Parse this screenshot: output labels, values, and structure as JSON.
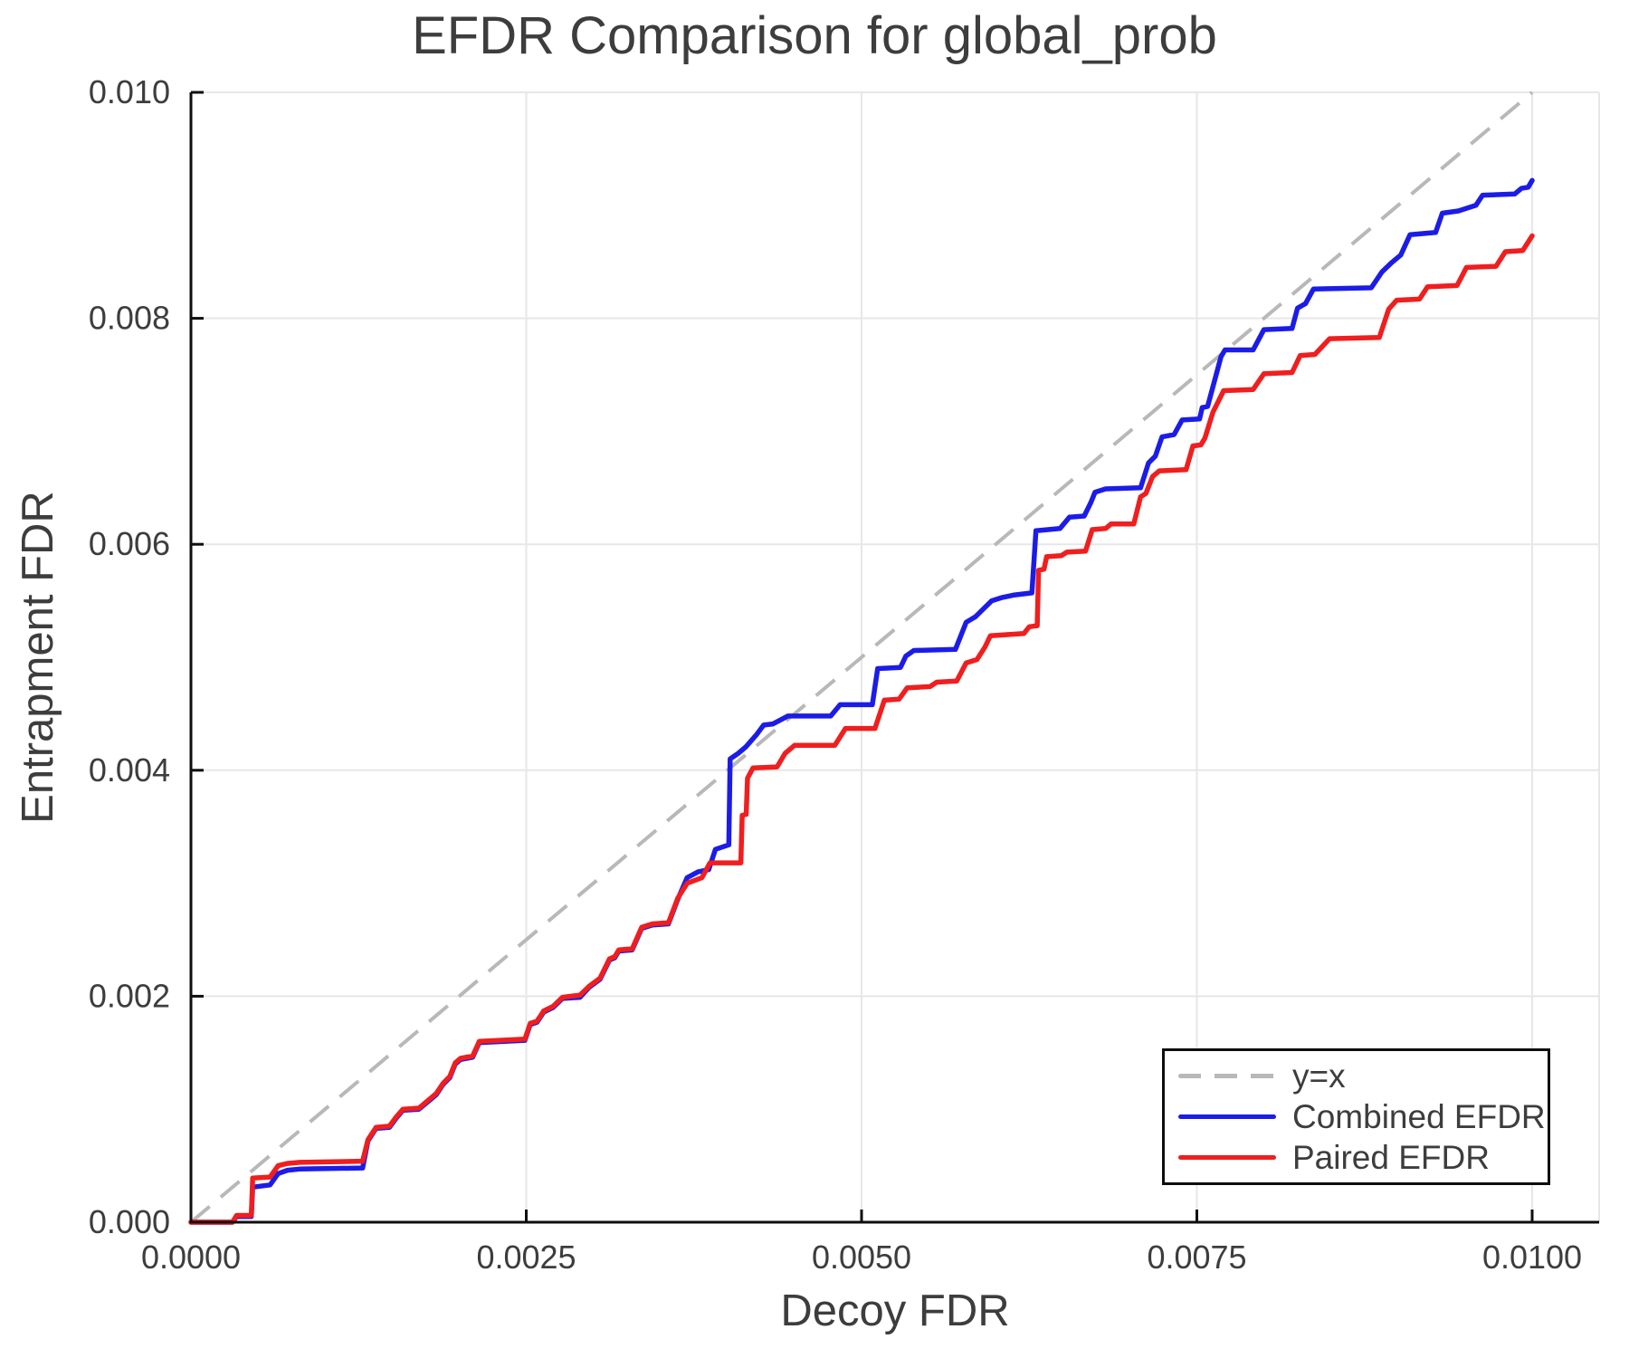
{
  "chart_data": {
    "type": "line",
    "title": "EFDR Comparison for global_prob",
    "xlabel": "Decoy FDR",
    "ylabel": "Entrapment FDR",
    "xlim": [
      0.0,
      0.0105
    ],
    "ylim": [
      0.0,
      0.01
    ],
    "grid": true,
    "legend_position": "bottom-right",
    "style": {
      "grid_color": "#e7e7e7",
      "spine_color": "#0e0e0e",
      "text_color": "#3d3d3d",
      "background": "#ffffff"
    },
    "x_ticks": [
      {
        "value": 0.0,
        "label": "0.0000"
      },
      {
        "value": 0.0025,
        "label": "0.0025"
      },
      {
        "value": 0.005,
        "label": "0.0050"
      },
      {
        "value": 0.0075,
        "label": "0.0075"
      },
      {
        "value": 0.01,
        "label": "0.0100"
      }
    ],
    "y_ticks": [
      {
        "value": 0.0,
        "label": "0.000"
      },
      {
        "value": 0.002,
        "label": "0.002"
      },
      {
        "value": 0.004,
        "label": "0.004"
      },
      {
        "value": 0.006,
        "label": "0.006"
      },
      {
        "value": 0.008,
        "label": "0.008"
      },
      {
        "value": 0.01,
        "label": "0.010"
      }
    ],
    "identity_line": {
      "label": "y=x",
      "color": "#b8b8b8",
      "dashed": true,
      "from": [
        0.0,
        0.0
      ],
      "to": [
        0.01,
        0.01
      ]
    },
    "series": [
      {
        "name": "Combined EFDR",
        "color": "#1c1ce8",
        "points": [
          [
            0,
            0
          ],
          [
            0.00031,
            0
          ],
          [
            0.00034,
            5e-05
          ],
          [
            0.00045,
            5e-05
          ],
          [
            0.00046,
            0.00031
          ],
          [
            0.00059,
            0.00033
          ],
          [
            0.00065,
            0.00043
          ],
          [
            0.00072,
            0.00046
          ],
          [
            0.00081,
            0.00047
          ],
          [
            0.00128,
            0.00048
          ],
          [
            0.00132,
            0.00072
          ],
          [
            0.00138,
            0.00083
          ],
          [
            0.00148,
            0.00084
          ],
          [
            0.00153,
            0.00092
          ],
          [
            0.00158,
            0.00099
          ],
          [
            0.0017,
            0.001
          ],
          [
            0.00177,
            0.00107
          ],
          [
            0.00183,
            0.00113
          ],
          [
            0.00188,
            0.00122
          ],
          [
            0.00193,
            0.00128
          ],
          [
            0.00197,
            0.0014
          ],
          [
            0.00201,
            0.00144
          ],
          [
            0.0021,
            0.00146
          ],
          [
            0.00215,
            0.00159
          ],
          [
            0.00249,
            0.00161
          ],
          [
            0.00253,
            0.00175
          ],
          [
            0.00258,
            0.00177
          ],
          [
            0.00263,
            0.00186
          ],
          [
            0.0027,
            0.0019
          ],
          [
            0.00277,
            0.00198
          ],
          [
            0.0029,
            0.00199
          ],
          [
            0.00297,
            0.00208
          ],
          [
            0.00305,
            0.00215
          ],
          [
            0.00312,
            0.00232
          ],
          [
            0.00316,
            0.00234
          ],
          [
            0.00319,
            0.0024
          ],
          [
            0.00329,
            0.00241
          ],
          [
            0.00336,
            0.0026
          ],
          [
            0.00344,
            0.00263
          ],
          [
            0.00356,
            0.00264
          ],
          [
            0.00363,
            0.00286
          ],
          [
            0.0037,
            0.00305
          ],
          [
            0.00378,
            0.0031
          ],
          [
            0.00386,
            0.00312
          ],
          [
            0.00391,
            0.0033
          ],
          [
            0.00401,
            0.00334
          ],
          [
            0.00402,
            0.0041
          ],
          [
            0.00408,
            0.00415
          ],
          [
            0.00414,
            0.00421
          ],
          [
            0.00422,
            0.00432
          ],
          [
            0.00427,
            0.0044
          ],
          [
            0.00434,
            0.00441
          ],
          [
            0.00445,
            0.00448
          ],
          [
            0.00477,
            0.00448
          ],
          [
            0.00484,
            0.00458
          ],
          [
            0.00508,
            0.00458
          ],
          [
            0.00512,
            0.0049
          ],
          [
            0.00529,
            0.00491
          ],
          [
            0.00533,
            0.00501
          ],
          [
            0.00539,
            0.00506
          ],
          [
            0.0057,
            0.00507
          ],
          [
            0.00578,
            0.00531
          ],
          [
            0.00585,
            0.00536
          ],
          [
            0.00591,
            0.00543
          ],
          [
            0.00597,
            0.0055
          ],
          [
            0.00605,
            0.00553
          ],
          [
            0.00613,
            0.00555
          ],
          [
            0.00627,
            0.00557
          ],
          [
            0.0063,
            0.00612
          ],
          [
            0.00648,
            0.00614
          ],
          [
            0.00655,
            0.00624
          ],
          [
            0.00666,
            0.00625
          ],
          [
            0.00671,
            0.00637
          ],
          [
            0.00674,
            0.00646
          ],
          [
            0.00682,
            0.00649
          ],
          [
            0.00708,
            0.0065
          ],
          [
            0.00714,
            0.00672
          ],
          [
            0.00719,
            0.00678
          ],
          [
            0.00724,
            0.00695
          ],
          [
            0.00733,
            0.00697
          ],
          [
            0.00739,
            0.0071
          ],
          [
            0.00752,
            0.00711
          ],
          [
            0.00754,
            0.00721
          ],
          [
            0.00758,
            0.00722
          ],
          [
            0.00768,
            0.00766
          ],
          [
            0.00771,
            0.00772
          ],
          [
            0.00792,
            0.00772
          ],
          [
            0.008,
            0.0079
          ],
          [
            0.00821,
            0.00791
          ],
          [
            0.00825,
            0.00809
          ],
          [
            0.00831,
            0.00813
          ],
          [
            0.00837,
            0.00826
          ],
          [
            0.0088,
            0.00827
          ],
          [
            0.00888,
            0.00841
          ],
          [
            0.00895,
            0.00849
          ],
          [
            0.00902,
            0.00856
          ],
          [
            0.00909,
            0.00874
          ],
          [
            0.00928,
            0.00876
          ],
          [
            0.00933,
            0.00893
          ],
          [
            0.00945,
            0.00895
          ],
          [
            0.00958,
            0.009
          ],
          [
            0.00963,
            0.00909
          ],
          [
            0.00987,
            0.0091
          ],
          [
            0.00992,
            0.00915
          ],
          [
            0.00997,
            0.00916
          ],
          [
            0.01,
            0.00922
          ]
        ]
      },
      {
        "name": "Paired EFDR",
        "color": "#f01e1e",
        "points": [
          [
            0,
            0
          ],
          [
            0.00031,
            0
          ],
          [
            0.00034,
            6e-05
          ],
          [
            0.00045,
            6e-05
          ],
          [
            0.00046,
            0.00039
          ],
          [
            0.00059,
            0.0004
          ],
          [
            0.00065,
            0.0005
          ],
          [
            0.00072,
            0.00052
          ],
          [
            0.00081,
            0.00053
          ],
          [
            0.00128,
            0.00054
          ],
          [
            0.00132,
            0.00073
          ],
          [
            0.00138,
            0.00084
          ],
          [
            0.00148,
            0.00085
          ],
          [
            0.00153,
            0.00093
          ],
          [
            0.00158,
            0.001
          ],
          [
            0.0017,
            0.00101
          ],
          [
            0.00177,
            0.00108
          ],
          [
            0.00183,
            0.00114
          ],
          [
            0.00188,
            0.00123
          ],
          [
            0.00193,
            0.00129
          ],
          [
            0.00197,
            0.00141
          ],
          [
            0.00201,
            0.00145
          ],
          [
            0.0021,
            0.00147
          ],
          [
            0.00215,
            0.0016
          ],
          [
            0.00249,
            0.00162
          ],
          [
            0.00253,
            0.00176
          ],
          [
            0.00258,
            0.00178
          ],
          [
            0.00263,
            0.00187
          ],
          [
            0.0027,
            0.00191
          ],
          [
            0.00277,
            0.00199
          ],
          [
            0.0029,
            0.00201
          ],
          [
            0.00297,
            0.00209
          ],
          [
            0.00305,
            0.00216
          ],
          [
            0.00312,
            0.00233
          ],
          [
            0.00316,
            0.00235
          ],
          [
            0.00319,
            0.00241
          ],
          [
            0.00329,
            0.00242
          ],
          [
            0.00336,
            0.00261
          ],
          [
            0.00344,
            0.00264
          ],
          [
            0.00356,
            0.00265
          ],
          [
            0.00363,
            0.00287
          ],
          [
            0.0037,
            0.003
          ],
          [
            0.00381,
            0.00305
          ],
          [
            0.00387,
            0.00318
          ],
          [
            0.0041,
            0.00318
          ],
          [
            0.00411,
            0.0036
          ],
          [
            0.00414,
            0.00361
          ],
          [
            0.00415,
            0.00393
          ],
          [
            0.00419,
            0.00402
          ],
          [
            0.00437,
            0.00403
          ],
          [
            0.00443,
            0.00415
          ],
          [
            0.0045,
            0.00422
          ],
          [
            0.0048,
            0.00422
          ],
          [
            0.00488,
            0.00437
          ],
          [
            0.0051,
            0.00437
          ],
          [
            0.00517,
            0.00462
          ],
          [
            0.00528,
            0.00463
          ],
          [
            0.00534,
            0.00473
          ],
          [
            0.00551,
            0.00474
          ],
          [
            0.00556,
            0.00478
          ],
          [
            0.00571,
            0.00479
          ],
          [
            0.00578,
            0.00495
          ],
          [
            0.00586,
            0.00498
          ],
          [
            0.00592,
            0.00509
          ],
          [
            0.00596,
            0.00519
          ],
          [
            0.00621,
            0.00521
          ],
          [
            0.00625,
            0.00527
          ],
          [
            0.00631,
            0.00528
          ],
          [
            0.00632,
            0.00577
          ],
          [
            0.00636,
            0.00578
          ],
          [
            0.00638,
            0.00589
          ],
          [
            0.00649,
            0.0059
          ],
          [
            0.00653,
            0.00593
          ],
          [
            0.00667,
            0.00594
          ],
          [
            0.00672,
            0.00613
          ],
          [
            0.00682,
            0.00614
          ],
          [
            0.00686,
            0.00618
          ],
          [
            0.00703,
            0.00618
          ],
          [
            0.00708,
            0.00642
          ],
          [
            0.00712,
            0.00645
          ],
          [
            0.00717,
            0.0066
          ],
          [
            0.00722,
            0.00665
          ],
          [
            0.00742,
            0.00666
          ],
          [
            0.00747,
            0.00687
          ],
          [
            0.00753,
            0.00688
          ],
          [
            0.00756,
            0.00694
          ],
          [
            0.00762,
            0.00717
          ],
          [
            0.0077,
            0.00736
          ],
          [
            0.00792,
            0.00737
          ],
          [
            0.008,
            0.00751
          ],
          [
            0.00821,
            0.00752
          ],
          [
            0.00827,
            0.00767
          ],
          [
            0.00838,
            0.00768
          ],
          [
            0.00849,
            0.00782
          ],
          [
            0.00886,
            0.00783
          ],
          [
            0.00893,
            0.00808
          ],
          [
            0.00899,
            0.00816
          ],
          [
            0.00916,
            0.00817
          ],
          [
            0.00922,
            0.00828
          ],
          [
            0.00944,
            0.00829
          ],
          [
            0.00951,
            0.00845
          ],
          [
            0.00973,
            0.00846
          ],
          [
            0.0098,
            0.00859
          ],
          [
            0.00993,
            0.0086
          ],
          [
            0.01,
            0.00873
          ]
        ]
      }
    ]
  }
}
